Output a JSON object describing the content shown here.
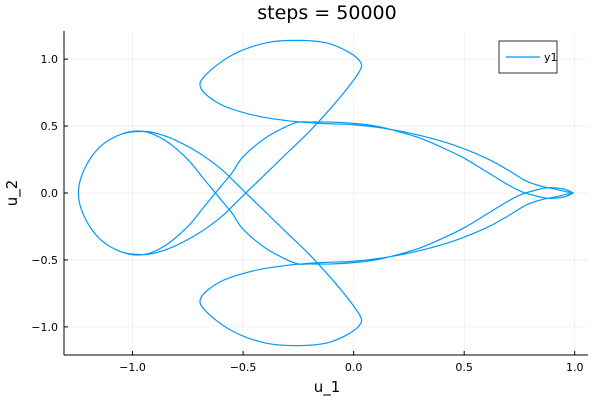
{
  "chart_data": {
    "type": "line",
    "title": "steps = 50000",
    "xlabel": "u_1",
    "ylabel": "u_2",
    "xlim": [
      -1.31,
      1.06
    ],
    "ylim": [
      -1.21,
      1.21
    ],
    "xticks": [
      -1.0,
      -0.5,
      0.0,
      0.5,
      1.0
    ],
    "xtick_labels": [
      "−1.0",
      "−0.5",
      "0.0",
      "0.5",
      "1.0"
    ],
    "yticks": [
      -1.0,
      -0.5,
      0.0,
      0.5,
      1.0
    ],
    "ytick_labels": [
      "−1.0",
      "−0.5",
      "0.0",
      "0.5",
      "1.0"
    ],
    "grid": true,
    "legend_position": "top-right",
    "series": [
      {
        "name": "y1",
        "color": "#009af9",
        "x": [
          0.994,
          0.95,
          0.88,
          0.82,
          0.76,
          0.7,
          0.6,
          0.5,
          0.4,
          0.3,
          0.2,
          0.1,
          0.0,
          -0.1,
          -0.2,
          -0.25,
          -0.3,
          -0.4,
          -0.5,
          -0.55,
          -0.6,
          -0.68,
          -0.75,
          -0.85,
          -0.95,
          -1.05,
          -1.15,
          -1.22,
          -1.245,
          -1.22,
          -1.15,
          -1.05,
          -0.95,
          -0.88,
          -0.8,
          -0.7,
          -0.6,
          -0.5,
          -0.4,
          -0.3,
          -0.2,
          -0.1,
          -0.02,
          0.03,
          0.03,
          -0.02,
          -0.12,
          -0.26,
          -0.4,
          -0.55,
          -0.67,
          -0.69,
          -0.6,
          -0.45,
          -0.3,
          -0.15,
          0.0,
          0.15,
          0.3,
          0.45,
          0.6,
          0.7,
          0.78,
          0.85,
          0.91,
          0.96,
          0.994,
          0.96,
          0.91,
          0.85,
          0.78,
          0.7,
          0.6,
          0.45,
          0.3,
          0.15,
          0.0,
          -0.15,
          -0.3,
          -0.45,
          -0.6,
          -0.69,
          -0.67,
          -0.55,
          -0.4,
          -0.26,
          -0.12,
          -0.02,
          0.03,
          0.03,
          -0.02,
          -0.1,
          -0.2,
          -0.3,
          -0.4,
          -0.5,
          -0.6,
          -0.7,
          -0.8,
          -0.88,
          -0.95,
          -1.05,
          -1.15,
          -1.22,
          -1.245,
          -1.22,
          -1.15,
          -1.05,
          -0.95,
          -0.85,
          -0.75,
          -0.68,
          -0.6,
          -0.55,
          -0.5,
          -0.4,
          -0.3,
          -0.25,
          -0.2,
          -0.1,
          0.0,
          0.1,
          0.2,
          0.3,
          0.4,
          0.5,
          0.6,
          0.7,
          0.76,
          0.82,
          0.88,
          0.95,
          0.994
        ],
        "y": [
          0.0,
          0.03,
          0.04,
          0.02,
          -0.01,
          -0.06,
          -0.16,
          -0.26,
          -0.34,
          -0.41,
          -0.46,
          -0.5,
          -0.52,
          -0.53,
          -0.53,
          -0.53,
          -0.5,
          -0.41,
          -0.27,
          -0.15,
          -0.05,
          0.11,
          0.25,
          0.39,
          0.46,
          0.44,
          0.34,
          0.17,
          0.0,
          -0.17,
          -0.34,
          -0.44,
          -0.46,
          -0.44,
          -0.39,
          -0.3,
          -0.18,
          -0.02,
          0.14,
          0.3,
          0.46,
          0.64,
          0.8,
          0.92,
          0.98,
          1.05,
          1.12,
          1.14,
          1.12,
          1.03,
          0.88,
          0.78,
          0.66,
          0.58,
          0.54,
          0.52,
          0.51,
          0.48,
          0.43,
          0.36,
          0.26,
          0.17,
          0.09,
          0.05,
          0.03,
          0.01,
          0.0,
          -0.01,
          -0.03,
          -0.05,
          -0.09,
          -0.17,
          -0.26,
          -0.36,
          -0.43,
          -0.48,
          -0.51,
          -0.52,
          -0.54,
          -0.58,
          -0.66,
          -0.78,
          -0.88,
          -1.03,
          -1.12,
          -1.14,
          -1.12,
          -1.05,
          -0.98,
          -0.92,
          -0.8,
          -0.64,
          -0.46,
          -0.3,
          -0.14,
          0.02,
          0.18,
          0.3,
          0.39,
          0.44,
          0.46,
          0.44,
          0.34,
          0.17,
          0.0,
          -0.17,
          -0.34,
          -0.44,
          -0.46,
          -0.39,
          -0.25,
          -0.11,
          0.05,
          0.15,
          0.27,
          0.41,
          0.5,
          0.53,
          0.53,
          0.53,
          0.52,
          0.5,
          0.46,
          0.41,
          0.34,
          0.26,
          0.16,
          0.06,
          0.01,
          -0.02,
          -0.04,
          -0.03,
          0.0
        ]
      }
    ]
  }
}
